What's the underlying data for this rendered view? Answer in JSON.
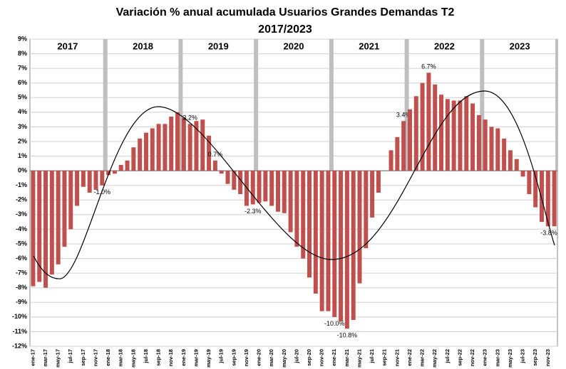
{
  "chart_data": {
    "type": "bar",
    "title_lines": [
      "Variación % anual acumulada Usuarios Grandes Demandas T2",
      "2017/2023"
    ],
    "years": [
      "2017",
      "2018",
      "2019",
      "2020",
      "2021",
      "2022",
      "2023"
    ],
    "categories": [
      "ene-17",
      null,
      "mar-17",
      null,
      "may-17",
      null,
      "jul-17",
      null,
      "sep-17",
      null,
      "nov-17",
      null,
      "ene-18",
      null,
      "mar-18",
      null,
      "may-18",
      null,
      "jul-18",
      null,
      "sep-18",
      null,
      "nov-18",
      null,
      "ene-19",
      null,
      "mar-19",
      null,
      "may-19",
      null,
      "jul-19",
      null,
      "sep-19",
      null,
      "nov-19",
      null,
      "ene-20",
      null,
      "mar-20",
      null,
      "may-20",
      null,
      "jul-20",
      null,
      "sep-20",
      null,
      "nov-20",
      null,
      "ene-21",
      null,
      "mar-21",
      null,
      "may-21",
      null,
      "jul-21",
      null,
      "sep-21",
      null,
      "nov-21",
      null,
      "ene-22",
      null,
      "mar-22",
      null,
      "may-22",
      null,
      "jul-22",
      null,
      "sep-22",
      null,
      "nov-22",
      null,
      "ene-23",
      null,
      "mar-23",
      null,
      "may-23",
      null,
      "jul-23",
      null,
      "sep-23",
      null,
      "nov-23",
      null
    ],
    "values": [
      -7.9,
      -7.6,
      -8.0,
      -7.1,
      -6.4,
      -5.2,
      -4.0,
      -2.4,
      -1.1,
      -1.5,
      -1.3,
      -1.0,
      -0.3,
      -0.2,
      0.4,
      0.7,
      1.6,
      2.2,
      2.6,
      2.9,
      3.2,
      3.2,
      3.7,
      4.0,
      3.6,
      3.2,
      3.4,
      3.5,
      2.4,
      0.7,
      -0.2,
      -0.9,
      -1.3,
      -1.6,
      -2.4,
      -2.3,
      -2.2,
      -2.1,
      -2.4,
      -2.8,
      -2.9,
      -4.2,
      -5.2,
      -6.0,
      -7.3,
      -8.4,
      -9.6,
      -9.6,
      -10.0,
      -10.3,
      -10.8,
      -10.2,
      -7.7,
      -5.3,
      -3.2,
      -1.5,
      0.0,
      1.4,
      2.3,
      3.4,
      4.2,
      5.1,
      6.0,
      6.7,
      5.9,
      5.2,
      4.9,
      4.8,
      4.8,
      5.1,
      4.6,
      3.8,
      3.5,
      3.0,
      2.9,
      2.2,
      1.4,
      0.8,
      -0.4,
      -1.6,
      -2.5,
      -3.5,
      -3.8,
      -3.8
    ],
    "value_labels": [
      null,
      null,
      null,
      null,
      null,
      null,
      null,
      null,
      null,
      null,
      null,
      "-1.0%",
      null,
      null,
      null,
      null,
      null,
      null,
      null,
      null,
      null,
      null,
      null,
      null,
      null,
      "3.2%",
      null,
      null,
      null,
      "0.7%",
      null,
      null,
      null,
      null,
      null,
      "-2.3%",
      null,
      null,
      null,
      null,
      null,
      null,
      null,
      null,
      null,
      null,
      null,
      null,
      "-10.0%",
      null,
      "-10.8%",
      null,
      null,
      null,
      null,
      null,
      null,
      null,
      null,
      "3.4%",
      null,
      null,
      null,
      "6.7%",
      null,
      null,
      null,
      null,
      null,
      null,
      null,
      null,
      null,
      null,
      null,
      null,
      null,
      null,
      null,
      null,
      null,
      null,
      null,
      "-3.8%"
    ],
    "color": "#c0504d",
    "ylim": [
      -12,
      9
    ],
    "yticks": [
      {
        "value": -12,
        "label": "-12%"
      },
      {
        "value": -11,
        "label": "-11%"
      },
      {
        "value": -10,
        "label": "-10%"
      },
      {
        "value": -9,
        "label": "-9%"
      },
      {
        "value": -8,
        "label": "-8%"
      },
      {
        "value": -7,
        "label": "-7%"
      },
      {
        "value": -6,
        "label": "-6%"
      },
      {
        "value": -5,
        "label": "-5%"
      },
      {
        "value": -4,
        "label": "-4%"
      },
      {
        "value": -3,
        "label": "-3%"
      },
      {
        "value": -2,
        "label": "-2%"
      },
      {
        "value": -1,
        "label": "-1%"
      },
      {
        "value": 0,
        "label": "0%"
      },
      {
        "value": 1,
        "label": "1%"
      },
      {
        "value": 2,
        "label": "2%"
      },
      {
        "value": 3,
        "label": "3%"
      },
      {
        "value": 4,
        "label": "4%"
      },
      {
        "value": 5,
        "label": "5%"
      },
      {
        "value": 6,
        "label": "6%"
      },
      {
        "value": 7,
        "label": "7%"
      },
      {
        "value": 8,
        "label": "8%"
      },
      {
        "value": 9,
        "label": "9%"
      }
    ],
    "grid": true
  }
}
